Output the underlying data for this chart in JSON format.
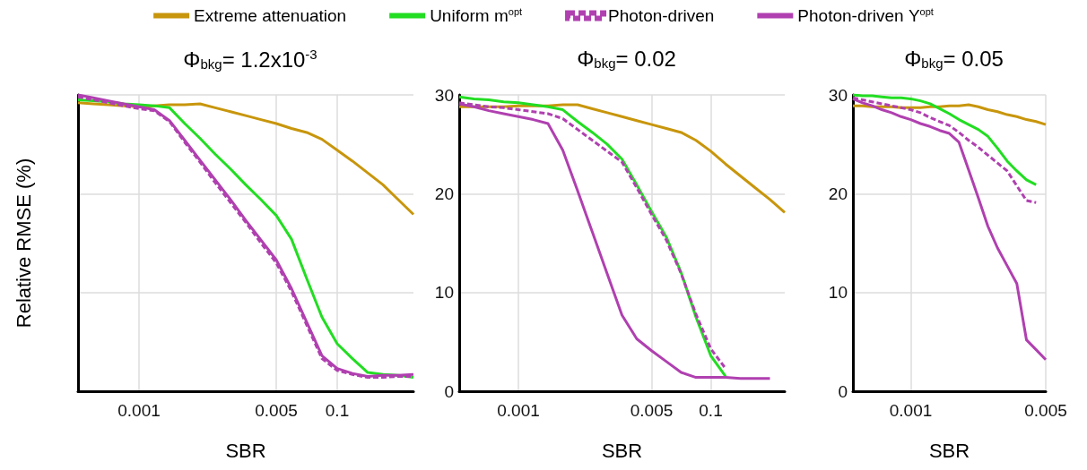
{
  "chart_data": [
    {
      "type": "line",
      "title": "Φ$_{bkg}$= 1.2x10$^{-3}$",
      "xlabel": "SBR",
      "ylabel": "Relative RMSE (%)",
      "categories": [
        null,
        null,
        null,
        null,
        "0.001",
        null,
        null,
        null,
        null,
        null,
        null,
        null,
        null,
        "0.005",
        null,
        null,
        null,
        "0.1",
        null,
        null,
        null,
        null,
        null
      ],
      "ylim": [
        0,
        30
      ],
      "yticks": [
        0,
        10,
        20,
        30
      ],
      "grid": true,
      "legend": "top",
      "tick_labels": "x",
      "marker": "none",
      "series": [
        {
          "name": "Extreme attenuation",
          "color": "#c8960c",
          "values": [
            29.2,
            29.1,
            29.0,
            28.9,
            28.8,
            28.9,
            29.0,
            29.0,
            29.1,
            28.7,
            28.3,
            27.9,
            27.5,
            27.1,
            26.6,
            26.2,
            25.5,
            24.4,
            23.3,
            22.1,
            20.9,
            19.4,
            17.9
          ]
        },
        {
          "name": "Uniform m$^{opt}$",
          "color": "#22dd22",
          "values": [
            29.5,
            29.4,
            29.3,
            29.1,
            29.0,
            28.9,
            28.7,
            27.1,
            25.6,
            24.0,
            22.5,
            20.9,
            19.4,
            17.8,
            15.4,
            11.4,
            7.5,
            4.8,
            3.3,
            1.9,
            1.7,
            1.6,
            1.4
          ]
        },
        {
          "name": "Photon-driven",
          "color": "#b040b0",
          "line_style": "dashed",
          "values": [
            29.8,
            29.5,
            29.2,
            28.9,
            28.6,
            28.4,
            27.3,
            25.2,
            23.2,
            21.1,
            19.1,
            17.1,
            15.0,
            13.0,
            10.1,
            6.7,
            3.3,
            2.1,
            1.7,
            1.4,
            1.4,
            1.5,
            1.5
          ]
        },
        {
          "name": "Photon-driven Υ$^{opt}$",
          "color": "#b040b0",
          "values": [
            30,
            29.7,
            29.4,
            29.1,
            28.8,
            28.5,
            27.4,
            25.4,
            23.4,
            21.4,
            19.4,
            17.3,
            15.3,
            13.3,
            10.4,
            7.0,
            3.6,
            2.3,
            1.8,
            1.5,
            1.6,
            1.6,
            1.7
          ]
        }
      ]
    },
    {
      "type": "line",
      "title": "Φ$_{bkg}$= 0.02",
      "xlabel": "SBR",
      "categories": [
        null,
        null,
        null,
        null,
        "0.001",
        null,
        null,
        null,
        null,
        null,
        null,
        null,
        null,
        "0.005",
        null,
        null,
        null,
        "0.1",
        null,
        null,
        null,
        null,
        null
      ],
      "ylim": [
        0,
        30
      ],
      "yticks": [
        0,
        10,
        20,
        30
      ],
      "grid": true,
      "marker": "none",
      "series": [
        {
          "color": "#c8960c",
          "values": [
            28.8,
            28.8,
            28.8,
            28.8,
            28.9,
            28.9,
            28.9,
            29.0,
            29.0,
            28.6,
            28.2,
            27.8,
            27.4,
            27.0,
            26.6,
            26.2,
            25.4,
            24.3,
            23.0,
            21.8,
            20.6,
            19.4,
            18.1
          ]
        },
        {
          "color": "#22dd22",
          "values": [
            29.8,
            29.6,
            29.5,
            29.3,
            29.2,
            29.0,
            28.8,
            28.5,
            27.3,
            26.2,
            25.0,
            23.5,
            20.9,
            18.2,
            15.6,
            12.0,
            7.5,
            3.6,
            1.5,
            null,
            null,
            null,
            null
          ]
        },
        {
          "color": "#b040b0",
          "line_style": "dashed",
          "values": [
            29.2,
            29.0,
            28.8,
            28.7,
            28.5,
            28.3,
            28.1,
            27.6,
            26.5,
            25.4,
            24.3,
            23.2,
            20.6,
            17.9,
            15.3,
            11.9,
            7.8,
            4.3,
            2.3,
            null,
            null,
            null,
            null
          ]
        },
        {
          "color": "#b040b0",
          "values": [
            29.1,
            28.8,
            28.4,
            28.1,
            27.8,
            27.5,
            27.1,
            24.4,
            20.3,
            16.1,
            11.9,
            7.7,
            5.3,
            4.1,
            3.0,
            1.9,
            1.4,
            1.4,
            1.4,
            1.3,
            1.3,
            1.3,
            null
          ]
        }
      ]
    },
    {
      "type": "line",
      "title": "Φ$_{bkg}$= 0.05",
      "xlabel": "SBR",
      "categories": [
        null,
        null,
        null,
        null,
        null,
        null,
        "0.001",
        null,
        null,
        null,
        null,
        null,
        null,
        null,
        null,
        null,
        null,
        null,
        null,
        null,
        "0.005"
      ],
      "ylim": [
        0,
        30
      ],
      "yticks": [
        0,
        10,
        20,
        30
      ],
      "grid": true,
      "marker": "none",
      "series": [
        {
          "color": "#c8960c",
          "values": [
            28.9,
            28.9,
            28.8,
            28.8,
            28.8,
            28.7,
            28.7,
            28.7,
            28.8,
            28.8,
            28.9,
            28.9,
            29.0,
            28.8,
            28.5,
            28.3,
            28.0,
            27.8,
            27.5,
            27.3,
            27.0
          ]
        },
        {
          "color": "#22dd22",
          "values": [
            30,
            29.9,
            29.9,
            29.8,
            29.7,
            29.7,
            29.6,
            29.4,
            29.1,
            28.6,
            28.1,
            27.5,
            27.0,
            26.5,
            25.8,
            24.6,
            23.3,
            22.3,
            21.4,
            20.9,
            null
          ]
        },
        {
          "color": "#b040b0",
          "line_style": "dashed",
          "values": [
            29.7,
            29.5,
            29.3,
            29.1,
            28.9,
            28.7,
            28.5,
            28.2,
            27.7,
            27.3,
            26.9,
            26.2,
            25.4,
            24.7,
            23.9,
            23.1,
            22.3,
            20.8,
            19.3,
            19.1,
            null
          ]
        },
        {
          "color": "#b040b0",
          "values": [
            29.6,
            29.2,
            28.9,
            28.5,
            28.2,
            27.8,
            27.5,
            27.1,
            26.8,
            26.4,
            26.1,
            25.2,
            22.4,
            19.6,
            16.7,
            14.5,
            12.7,
            10.9,
            5.2,
            4.2,
            3.2
          ]
        }
      ]
    }
  ]
}
